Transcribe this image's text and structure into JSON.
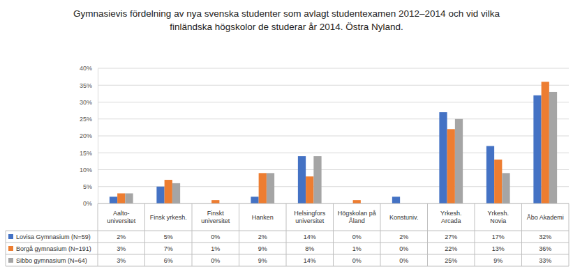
{
  "chart_data": {
    "type": "bar",
    "title": "Gymnasievis fördelning av nya svenska studenter som avlagt studentexamen 2012–2014 och vid vilka finländska högskolor de studerar år 2014. Östra Nyland.",
    "categories": [
      "Aalto-universitet",
      "Finsk yrkesh.",
      "Finskt universitet",
      "Hanken",
      "Helsingfors universitet",
      "Högskolan på Åland",
      "Konstuniv.",
      "Yrkesh. Arcada",
      "Yrkesh. Novia",
      "Åbo Akademi"
    ],
    "series": [
      {
        "name": "Lovisa Gymnasium (N=59)",
        "color": "#4472c4",
        "values": [
          2,
          5,
          0,
          2,
          14,
          0,
          2,
          27,
          17,
          32
        ],
        "value_labels": [
          "2%",
          "5%",
          "0%",
          "2%",
          "14%",
          "0%",
          "2%",
          "27%",
          "17%",
          "32%"
        ]
      },
      {
        "name": "Borgå gymnasium (N=191)",
        "color": "#ed7d31",
        "values": [
          3,
          7,
          1,
          9,
          8,
          1,
          0,
          22,
          13,
          36
        ],
        "value_labels": [
          "3%",
          "7%",
          "1%",
          "9%",
          "8%",
          "1%",
          "0%",
          "22%",
          "13%",
          "36%"
        ]
      },
      {
        "name": "Sibbo gymnasium (N=64)",
        "color": "#a5a5a5",
        "values": [
          3,
          6,
          0,
          9,
          14,
          0,
          0,
          25,
          9,
          33
        ],
        "value_labels": [
          "3%",
          "6%",
          "0%",
          "9%",
          "14%",
          "0%",
          "0%",
          "25%",
          "9%",
          "33%"
        ]
      }
    ],
    "ylim": [
      0,
      40
    ],
    "yticks": [
      {
        "value": 0,
        "label": "0%"
      },
      {
        "value": 5,
        "label": "5%"
      },
      {
        "value": 10,
        "label": "10%"
      },
      {
        "value": 15,
        "label": "15%"
      },
      {
        "value": 20,
        "label": "20%"
      },
      {
        "value": 25,
        "label": "25%"
      },
      {
        "value": 30,
        "label": "30%"
      },
      {
        "value": 35,
        "label": "35%"
      },
      {
        "value": 40,
        "label": "40%"
      }
    ],
    "grid": true
  }
}
